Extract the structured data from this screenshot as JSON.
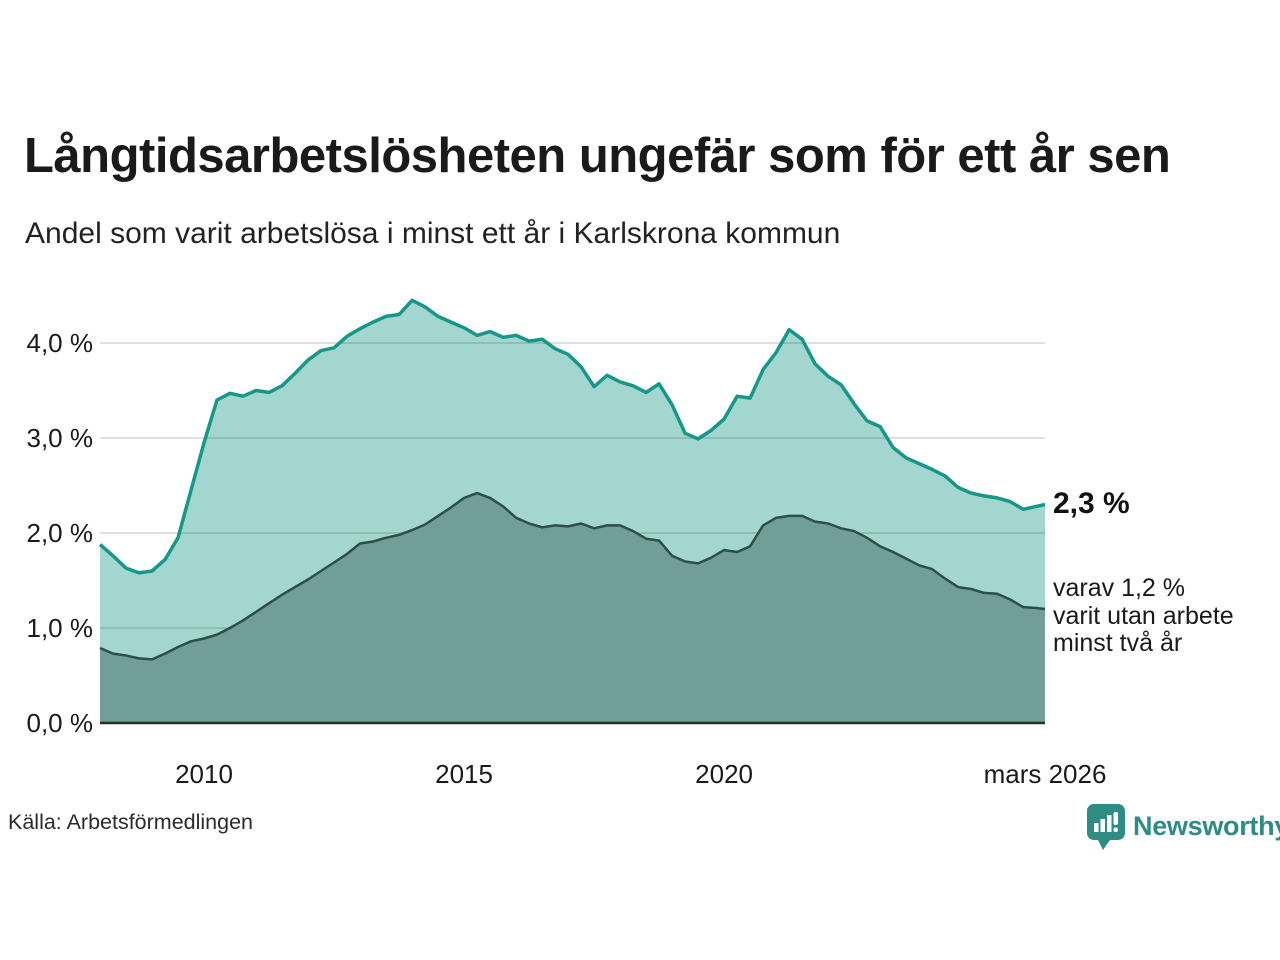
{
  "chart_data": {
    "type": "area",
    "title": "Långtidsarbetslösheten ungefär som för ett år sen",
    "subtitle": "Andel som varit arbetslösa i minst ett år i Karlskrona kommun",
    "unit": "%",
    "xlim": [
      2008,
      2026.17
    ],
    "ylim": [
      0,
      4.7
    ],
    "grid": true,
    "legend_position": "direct-labels-right",
    "x_ticks": [
      {
        "t": 2010,
        "label": "2010"
      },
      {
        "t": 2015,
        "label": "2015"
      },
      {
        "t": 2020,
        "label": "2020"
      },
      {
        "t": 2026.17,
        "label": "mars 2026"
      }
    ],
    "y_ticks": [
      {
        "v": 0,
        "label": "0,0 %"
      },
      {
        "v": 1,
        "label": "1,0 %"
      },
      {
        "v": 2,
        "label": "2,0 %"
      },
      {
        "v": 3,
        "label": "3,0 %"
      },
      {
        "v": 4,
        "label": "4,0 %"
      }
    ],
    "x": [
      2008,
      2008.25,
      2008.5,
      2008.75,
      2009,
      2009.25,
      2009.5,
      2009.75,
      2010,
      2010.25,
      2010.5,
      2010.75,
      2011,
      2011.25,
      2011.5,
      2011.75,
      2012,
      2012.25,
      2012.5,
      2012.75,
      2013,
      2013.25,
      2013.5,
      2013.75,
      2014,
      2014.25,
      2014.5,
      2014.75,
      2015,
      2015.25,
      2015.5,
      2015.75,
      2016,
      2016.25,
      2016.5,
      2016.75,
      2017,
      2017.25,
      2017.5,
      2017.75,
      2018,
      2018.25,
      2018.5,
      2018.75,
      2019,
      2019.25,
      2019.5,
      2019.75,
      2020,
      2020.25,
      2020.5,
      2020.75,
      2021,
      2021.25,
      2021.5,
      2021.75,
      2022,
      2022.25,
      2022.5,
      2022.75,
      2023,
      2023.25,
      2023.5,
      2023.75,
      2024,
      2024.25,
      2024.5,
      2024.75,
      2025,
      2025.25,
      2025.5,
      2025.75,
      2026,
      2026.17
    ],
    "series": [
      {
        "name": "Andel arbetslösa minst ett år",
        "line_color": "#17978a",
        "fill_color": "#a3d6ce",
        "line_width": 3.5,
        "values": [
          1.88,
          1.76,
          1.63,
          1.58,
          1.6,
          1.72,
          1.95,
          2.45,
          2.95,
          3.4,
          3.47,
          3.44,
          3.5,
          3.48,
          3.55,
          3.68,
          3.82,
          3.92,
          3.95,
          4.07,
          4.15,
          4.22,
          4.28,
          4.3,
          4.45,
          4.38,
          4.28,
          4.22,
          4.16,
          4.08,
          4.12,
          4.06,
          4.08,
          4.02,
          4.04,
          3.94,
          3.88,
          3.75,
          3.54,
          3.66,
          3.59,
          3.55,
          3.48,
          3.57,
          3.35,
          3.05,
          2.99,
          3.08,
          3.2,
          3.44,
          3.42,
          3.72,
          3.9,
          4.14,
          4.04,
          3.78,
          3.65,
          3.56,
          3.36,
          3.18,
          3.12,
          2.9,
          2.79,
          2.73,
          2.67,
          2.6,
          2.48,
          2.42,
          2.39,
          2.37,
          2.33,
          2.25,
          2.28,
          2.3
        ]
      },
      {
        "name": "varav arbetslösa minst två år",
        "line_color": "#2d4f4b",
        "fill_color": "#719e99",
        "line_width": 2.5,
        "values": [
          0.79,
          0.73,
          0.71,
          0.68,
          0.67,
          0.73,
          0.8,
          0.86,
          0.89,
          0.93,
          1.0,
          1.08,
          1.17,
          1.26,
          1.35,
          1.43,
          1.51,
          1.6,
          1.69,
          1.78,
          1.89,
          1.91,
          1.95,
          1.98,
          2.03,
          2.09,
          2.18,
          2.27,
          2.37,
          2.42,
          2.37,
          2.28,
          2.16,
          2.1,
          2.06,
          2.08,
          2.07,
          2.1,
          2.05,
          2.08,
          2.08,
          2.02,
          1.94,
          1.92,
          1.76,
          1.7,
          1.68,
          1.74,
          1.82,
          1.8,
          1.86,
          2.08,
          2.16,
          2.18,
          2.18,
          2.12,
          2.1,
          2.05,
          2.02,
          1.95,
          1.86,
          1.8,
          1.73,
          1.66,
          1.62,
          1.52,
          1.43,
          1.41,
          1.37,
          1.36,
          1.3,
          1.22,
          1.21,
          1.2
        ]
      }
    ]
  },
  "annotations": {
    "total": "2,3 %",
    "subset": "varav 1,2 %\nvarit utan arbete\nminst två år"
  },
  "footer": {
    "source": "Källa: Arbetsförmedlingen",
    "brand": "Newsworthy"
  },
  "colors": {
    "background": "#ffffff",
    "text": "#1a1a1a",
    "grid": "rgba(0,0,0,0.12)",
    "baseline": "#2b2b2b",
    "brand_teal": "#2e8c85"
  }
}
